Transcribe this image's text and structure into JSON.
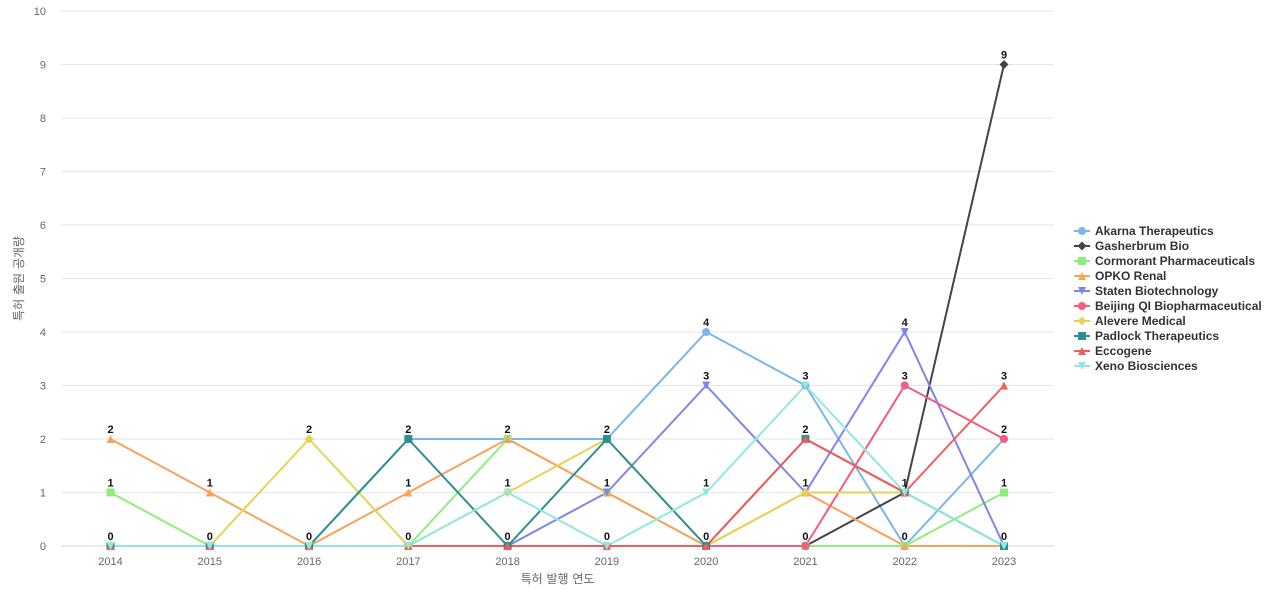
{
  "chart_data": {
    "type": "line",
    "xlabel": "특허 발행 연도",
    "ylabel": "특허 출원 공개량",
    "x": [
      "2014",
      "2015",
      "2016",
      "2017",
      "2018",
      "2019",
      "2020",
      "2021",
      "2022",
      "2023"
    ],
    "ylim": [
      0,
      10
    ],
    "yticks": [
      0,
      1,
      2,
      3,
      4,
      5,
      6,
      7,
      8,
      9,
      10
    ],
    "grid": true,
    "legend_position": "right",
    "series": [
      {
        "name": "Akarna Therapeutics",
        "color": "#7cb5ec",
        "marker": "circle",
        "values": [
          0,
          0,
          0,
          2,
          2,
          2,
          4,
          3,
          0,
          2
        ]
      },
      {
        "name": "Gasherbrum Bio",
        "color": "#434348",
        "marker": "diamond",
        "values": [
          0,
          0,
          0,
          0,
          0,
          0,
          0,
          0,
          1,
          9
        ]
      },
      {
        "name": "Cormorant Pharmaceuticals",
        "color": "#90ed7d",
        "marker": "square",
        "values": [
          1,
          0,
          0,
          0,
          2,
          1,
          0,
          0,
          0,
          1
        ]
      },
      {
        "name": "OPKO Renal",
        "color": "#f7a35c",
        "marker": "triangle",
        "values": [
          2,
          1,
          0,
          1,
          2,
          1,
          0,
          1,
          0,
          0
        ]
      },
      {
        "name": "Staten Biotechnology",
        "color": "#8085e9",
        "marker": "triangle-down",
        "values": [
          0,
          0,
          0,
          0,
          0,
          1,
          3,
          1,
          4,
          0
        ]
      },
      {
        "name": "Beijing QI Biopharmaceutical",
        "color": "#f15c80",
        "marker": "circle",
        "values": [
          0,
          0,
          0,
          0,
          0,
          0,
          0,
          0,
          3,
          2
        ]
      },
      {
        "name": "Alevere Medical",
        "color": "#e4d354",
        "marker": "diamond",
        "values": [
          0,
          0,
          2,
          0,
          1,
          2,
          0,
          1,
          1,
          0
        ]
      },
      {
        "name": "Padlock Therapeutics",
        "color": "#2b908f",
        "marker": "square",
        "values": [
          0,
          0,
          0,
          2,
          0,
          2,
          0,
          2,
          1,
          0
        ]
      },
      {
        "name": "Eccogene",
        "color": "#f45b5b",
        "marker": "triangle",
        "values": [
          0,
          0,
          0,
          0,
          0,
          0,
          0,
          2,
          1,
          3
        ]
      },
      {
        "name": "Xeno Biosciences",
        "color": "#91e8e1",
        "marker": "triangle-down",
        "values": [
          0,
          0,
          0,
          0,
          1,
          0,
          1,
          3,
          1,
          0
        ]
      }
    ],
    "data_labels": [
      {
        "x": "2014",
        "values": [
          "2",
          "1",
          "0"
        ]
      },
      {
        "x": "2015",
        "values": [
          "1",
          "0"
        ]
      },
      {
        "x": "2016",
        "values": [
          "2",
          "0"
        ]
      },
      {
        "x": "2017",
        "values": [
          "2",
          "1",
          "0"
        ]
      },
      {
        "x": "2018",
        "values": [
          "2",
          "1",
          "0"
        ]
      },
      {
        "x": "2019",
        "values": [
          "2",
          "1",
          "0"
        ]
      },
      {
        "x": "2020",
        "values": [
          "4",
          "3",
          "1",
          "0"
        ]
      },
      {
        "x": "2021",
        "values": [
          "3",
          "2",
          "1",
          "0"
        ]
      },
      {
        "x": "2022",
        "values": [
          "4",
          "3",
          "1",
          "0"
        ]
      },
      {
        "x": "2023",
        "values": [
          "9",
          "3",
          "2",
          "1",
          "0"
        ]
      }
    ]
  }
}
